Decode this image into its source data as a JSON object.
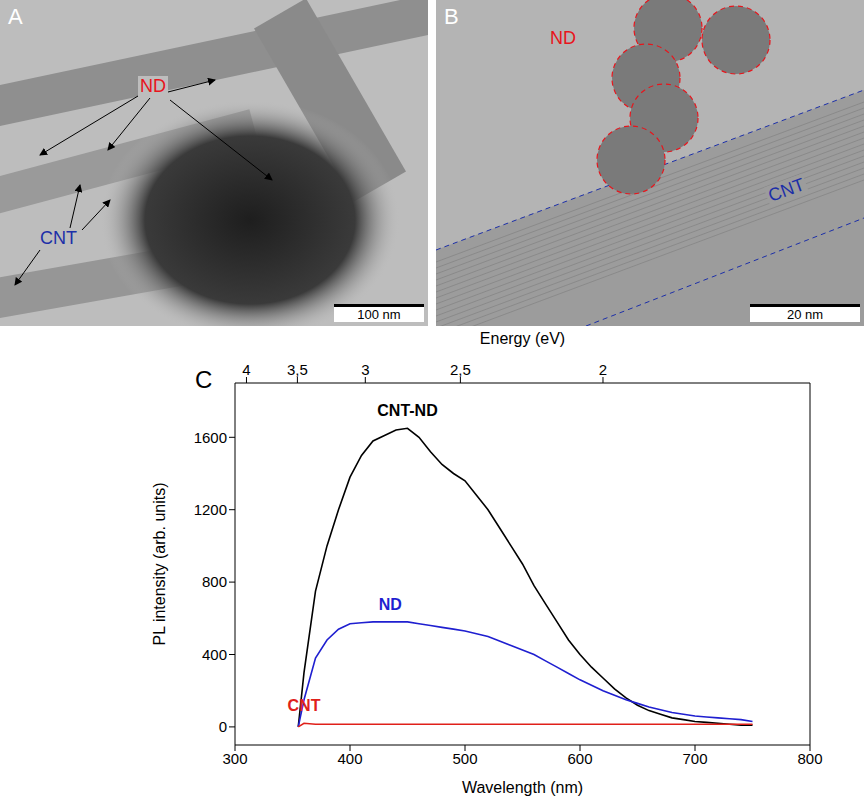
{
  "panels": [
    {
      "letter": "A",
      "labels": [
        {
          "text": "ND",
          "color": "#e8141b"
        },
        {
          "text": "CNT",
          "color": "#1c2fa8"
        }
      ],
      "scale_bar": "100 nm"
    },
    {
      "letter": "B",
      "labels": [
        {
          "text": "ND",
          "color": "#e8141b"
        },
        {
          "text": "CNT",
          "color": "#1c2fa8"
        }
      ],
      "scale_bar": "20 nm"
    },
    {
      "letter": "C"
    }
  ],
  "chart_data": {
    "type": "line",
    "xlabel": "Wavelength (nm)",
    "ylabel": "PL intensity (arb. units)",
    "x2label": "Energy (eV)",
    "x": [
      355,
      360,
      370,
      380,
      390,
      400,
      410,
      420,
      430,
      440,
      450,
      460,
      470,
      480,
      490,
      500,
      510,
      520,
      530,
      540,
      550,
      560,
      570,
      580,
      590,
      600,
      610,
      620,
      630,
      640,
      650,
      660,
      670,
      680,
      690,
      700,
      710,
      720,
      730,
      740,
      750
    ],
    "series": [
      {
        "name": "CNT-ND",
        "color": "#000000",
        "values": [
          0,
          300,
          750,
          1000,
          1200,
          1380,
          1500,
          1580,
          1610,
          1640,
          1650,
          1600,
          1520,
          1450,
          1400,
          1360,
          1280,
          1200,
          1100,
          1000,
          900,
          780,
          680,
          580,
          480,
          400,
          330,
          270,
          210,
          160,
          120,
          90,
          70,
          50,
          40,
          30,
          25,
          20,
          15,
          10,
          10
        ]
      },
      {
        "name": "ND",
        "color": "#1f1fd0",
        "values": [
          0,
          150,
          380,
          480,
          540,
          570,
          575,
          580,
          580,
          580,
          580,
          570,
          560,
          550,
          540,
          530,
          515,
          500,
          475,
          450,
          425,
          400,
          365,
          330,
          295,
          260,
          230,
          200,
          175,
          150,
          130,
          110,
          95,
          80,
          70,
          60,
          55,
          50,
          45,
          40,
          30
        ]
      },
      {
        "name": "CNT",
        "color": "#e0201a",
        "values": [
          0,
          20,
          15,
          15,
          15,
          15,
          15,
          15,
          15,
          15,
          15,
          15,
          15,
          15,
          15,
          15,
          15,
          15,
          15,
          15,
          15,
          15,
          15,
          15,
          15,
          15,
          15,
          15,
          15,
          15,
          15,
          15,
          15,
          15,
          15,
          15,
          15,
          15,
          15,
          15,
          15
        ]
      }
    ],
    "xlim": [
      300,
      800
    ],
    "xticks": [
      300,
      400,
      500,
      600,
      700,
      800
    ],
    "ylim": [
      -100,
      1900
    ],
    "yticks": [
      0,
      400,
      800,
      1200,
      1600
    ],
    "x2lim": [
      4.133,
      1.55
    ],
    "x2ticks": [
      4,
      {
        "value": 3.5,
        "label": "3,5"
      },
      3,
      {
        "value": 2.5,
        "label": "2,5"
      },
      2
    ],
    "grid": false
  }
}
